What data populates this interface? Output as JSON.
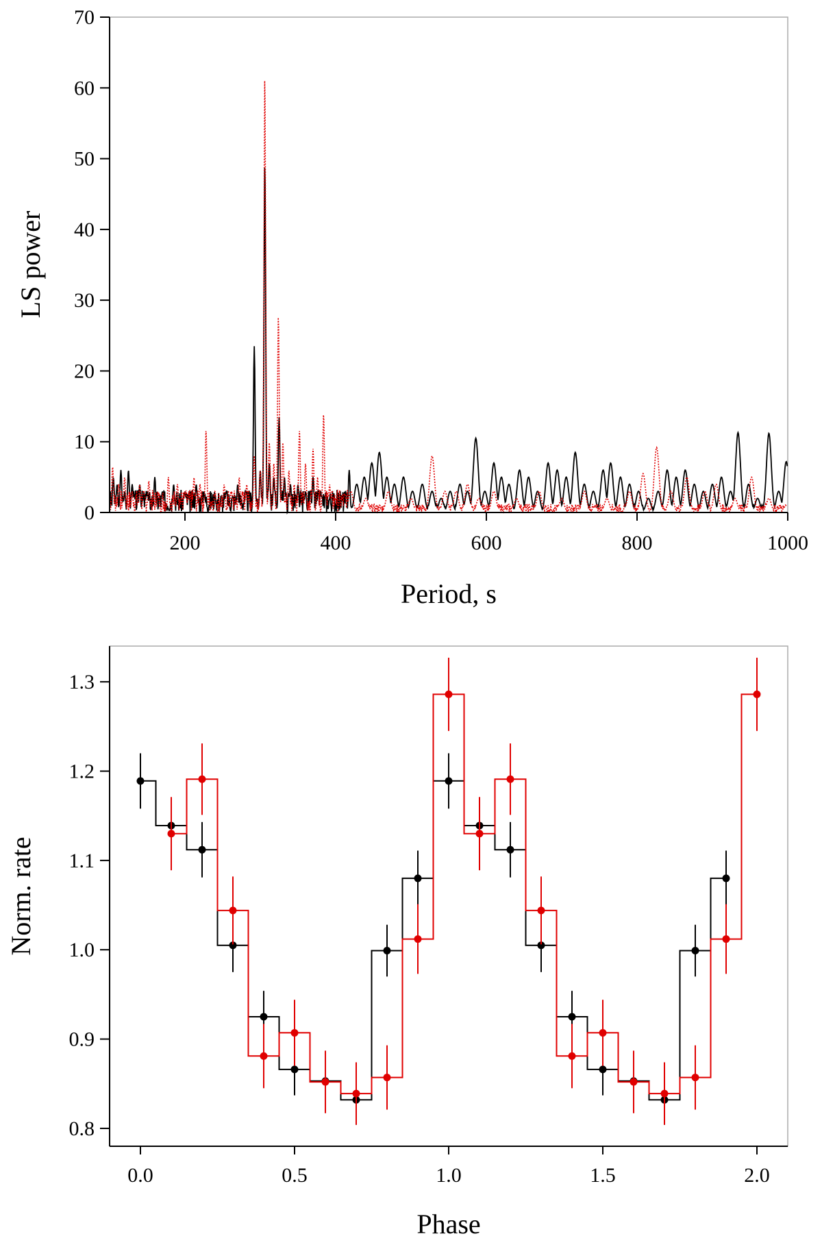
{
  "colors": {
    "series1": "#000000",
    "series2": "#e00000",
    "frame": "#aaaaaa",
    "background": "#ffffff"
  },
  "chart_data": [
    {
      "type": "line",
      "name": "periodogram",
      "xlabel": "Period, s",
      "ylabel": "LS power",
      "xlim": [
        100,
        1000
      ],
      "ylim": [
        0,
        70
      ],
      "xticks": [
        200,
        400,
        600,
        800,
        1000
      ],
      "yticks": [
        0,
        10,
        20,
        30,
        40,
        50,
        60,
        70
      ],
      "grid": false,
      "series": [
        {
          "name": "black-solid",
          "color": "#000000",
          "style": "solid",
          "peaks": [
            [
              105,
              5
            ],
            [
              110,
              4
            ],
            [
              115,
              6
            ],
            [
              120,
              3
            ],
            [
              125,
              6
            ],
            [
              130,
              4
            ],
            [
              140,
              4
            ],
            [
              150,
              3
            ],
            [
              160,
              5
            ],
            [
              170,
              3
            ],
            [
              185,
              4
            ],
            [
              200,
              3
            ],
            [
              215,
              4
            ],
            [
              225,
              3
            ],
            [
              240,
              2
            ],
            [
              255,
              3
            ],
            [
              270,
              4
            ],
            [
              280,
              3
            ],
            [
              292,
              23.5
            ],
            [
              300,
              6
            ],
            [
              306,
              49.5
            ],
            [
              312,
              7
            ],
            [
              318,
              5
            ],
            [
              325,
              13.5
            ],
            [
              332,
              5
            ],
            [
              340,
              4
            ],
            [
              350,
              4
            ],
            [
              360,
              3
            ],
            [
              370,
              5
            ],
            [
              380,
              3
            ],
            [
              392,
              2
            ],
            [
              418,
              6
            ],
            [
              428,
              4
            ],
            [
              438,
              5
            ],
            [
              448,
              7
            ],
            [
              458,
              8.5
            ],
            [
              468,
              5
            ],
            [
              478,
              4
            ],
            [
              490,
              5
            ],
            [
              502,
              3
            ],
            [
              515,
              4
            ],
            [
              528,
              3
            ],
            [
              540,
              2
            ],
            [
              552,
              3
            ],
            [
              565,
              4
            ],
            [
              575,
              3
            ],
            [
              586,
              10.5
            ],
            [
              598,
              3
            ],
            [
              610,
              7
            ],
            [
              620,
              5
            ],
            [
              630,
              4
            ],
            [
              644,
              6
            ],
            [
              656,
              5
            ],
            [
              668,
              3
            ],
            [
              682,
              7
            ],
            [
              694,
              6
            ],
            [
              706,
              5
            ],
            [
              718,
              8.5
            ],
            [
              730,
              4
            ],
            [
              742,
              3
            ],
            [
              755,
              6
            ],
            [
              765,
              7
            ],
            [
              778,
              5
            ],
            [
              790,
              4
            ],
            [
              802,
              3
            ],
            [
              815,
              2
            ],
            [
              828,
              3
            ],
            [
              840,
              6
            ],
            [
              852,
              5
            ],
            [
              864,
              6
            ],
            [
              876,
              4
            ],
            [
              888,
              3
            ],
            [
              900,
              4
            ],
            [
              912,
              5
            ],
            [
              924,
              3
            ],
            [
              934,
              11.3
            ],
            [
              948,
              4
            ],
            [
              960,
              2
            ],
            [
              975,
              11.2
            ],
            [
              988,
              3
            ],
            [
              998,
              7.2
            ]
          ]
        },
        {
          "name": "red-dotted",
          "color": "#e00000",
          "style": "dotted",
          "peaks": [
            [
              104,
              6.5
            ],
            [
              112,
              4
            ],
            [
              120,
              5
            ],
            [
              130,
              3
            ],
            [
              140,
              4
            ],
            [
              152,
              4.5
            ],
            [
              164,
              3
            ],
            [
              178,
              5
            ],
            [
              190,
              4
            ],
            [
              200,
              3
            ],
            [
              212,
              5
            ],
            [
              220,
              4
            ],
            [
              228,
              11.7
            ],
            [
              240,
              3
            ],
            [
              252,
              4
            ],
            [
              262,
              3
            ],
            [
              272,
              5
            ],
            [
              282,
              4
            ],
            [
              292,
              8
            ],
            [
              300,
              6
            ],
            [
              306,
              62
            ],
            [
              312,
              10
            ],
            [
              318,
              7
            ],
            [
              324,
              28
            ],
            [
              330,
              10
            ],
            [
              338,
              6
            ],
            [
              345,
              4
            ],
            [
              352,
              11.5
            ],
            [
              360,
              7
            ],
            [
              370,
              9
            ],
            [
              376,
              5
            ],
            [
              384,
              14
            ],
            [
              392,
              4
            ],
            [
              400,
              2
            ],
            [
              420,
              3
            ],
            [
              440,
              2
            ],
            [
              470,
              3
            ],
            [
              500,
              2
            ],
            [
              528,
              8
            ],
            [
              545,
              3
            ],
            [
              560,
              3
            ],
            [
              575,
              4
            ],
            [
              590,
              2
            ],
            [
              610,
              3
            ],
            [
              640,
              2
            ],
            [
              670,
              3
            ],
            [
              700,
              2
            ],
            [
              730,
              3
            ],
            [
              760,
              2
            ],
            [
              790,
              3
            ],
            [
              808,
              5.5
            ],
            [
              826,
              9.2
            ],
            [
              845,
              3
            ],
            [
              866,
              5
            ],
            [
              890,
              3
            ],
            [
              905,
              4
            ],
            [
              930,
              2
            ],
            [
              952,
              5
            ],
            [
              975,
              2
            ],
            [
              998,
              1
            ]
          ]
        }
      ]
    },
    {
      "type": "step",
      "name": "pulse-profile",
      "xlabel": "Phase",
      "ylabel": "Norm. rate",
      "xlim": [
        -0.1,
        2.1
      ],
      "ylim": [
        0.78,
        1.34
      ],
      "xticks": [
        0.0,
        0.5,
        1.0,
        1.5,
        2.0
      ],
      "xtick_labels": [
        "0.0",
        "0.5",
        "1.0",
        "1.5",
        "2.0"
      ],
      "yticks": [
        0.8,
        0.9,
        1.0,
        1.1,
        1.2,
        1.3
      ],
      "ytick_labels": [
        "0.8",
        "0.9",
        "1.0",
        "1.1",
        "1.2",
        "1.3"
      ],
      "grid": false,
      "series": [
        {
          "name": "black",
          "color": "#000000",
          "x": [
            0.0,
            0.1,
            0.2,
            0.3,
            0.4,
            0.5,
            0.6,
            0.7,
            0.8,
            0.9,
            1.0,
            1.1,
            1.2,
            1.3,
            1.4,
            1.5,
            1.6,
            1.7,
            1.8,
            1.9
          ],
          "y": [
            1.189,
            1.139,
            1.112,
            1.005,
            0.925,
            0.866,
            0.853,
            0.832,
            0.999,
            1.08,
            1.189,
            1.139,
            1.112,
            1.005,
            0.925,
            0.866,
            0.853,
            0.832,
            0.999,
            1.08
          ],
          "err": [
            0.031,
            0.031,
            0.031,
            0.03,
            0.029,
            0.029,
            0.029,
            0.028,
            0.029,
            0.031,
            0.031,
            0.031,
            0.031,
            0.03,
            0.029,
            0.029,
            0.029,
            0.028,
            0.029,
            0.031
          ]
        },
        {
          "name": "red",
          "color": "#e00000",
          "x": [
            0.1,
            0.2,
            0.3,
            0.4,
            0.5,
            0.6,
            0.7,
            0.8,
            0.9,
            1.0,
            1.1,
            1.2,
            1.3,
            1.4,
            1.5,
            1.6,
            1.7,
            1.8,
            1.9,
            2.0
          ],
          "y": [
            1.13,
            1.191,
            1.044,
            0.881,
            0.907,
            0.852,
            0.839,
            0.857,
            1.012,
            1.286,
            1.13,
            1.191,
            1.044,
            0.881,
            0.907,
            0.852,
            0.839,
            0.857,
            1.012,
            1.286
          ],
          "err": [
            0.041,
            0.04,
            0.038,
            0.036,
            0.037,
            0.035,
            0.035,
            0.036,
            0.039,
            0.041,
            0.041,
            0.04,
            0.038,
            0.036,
            0.037,
            0.035,
            0.035,
            0.036,
            0.039,
            0.041
          ]
        }
      ]
    }
  ]
}
